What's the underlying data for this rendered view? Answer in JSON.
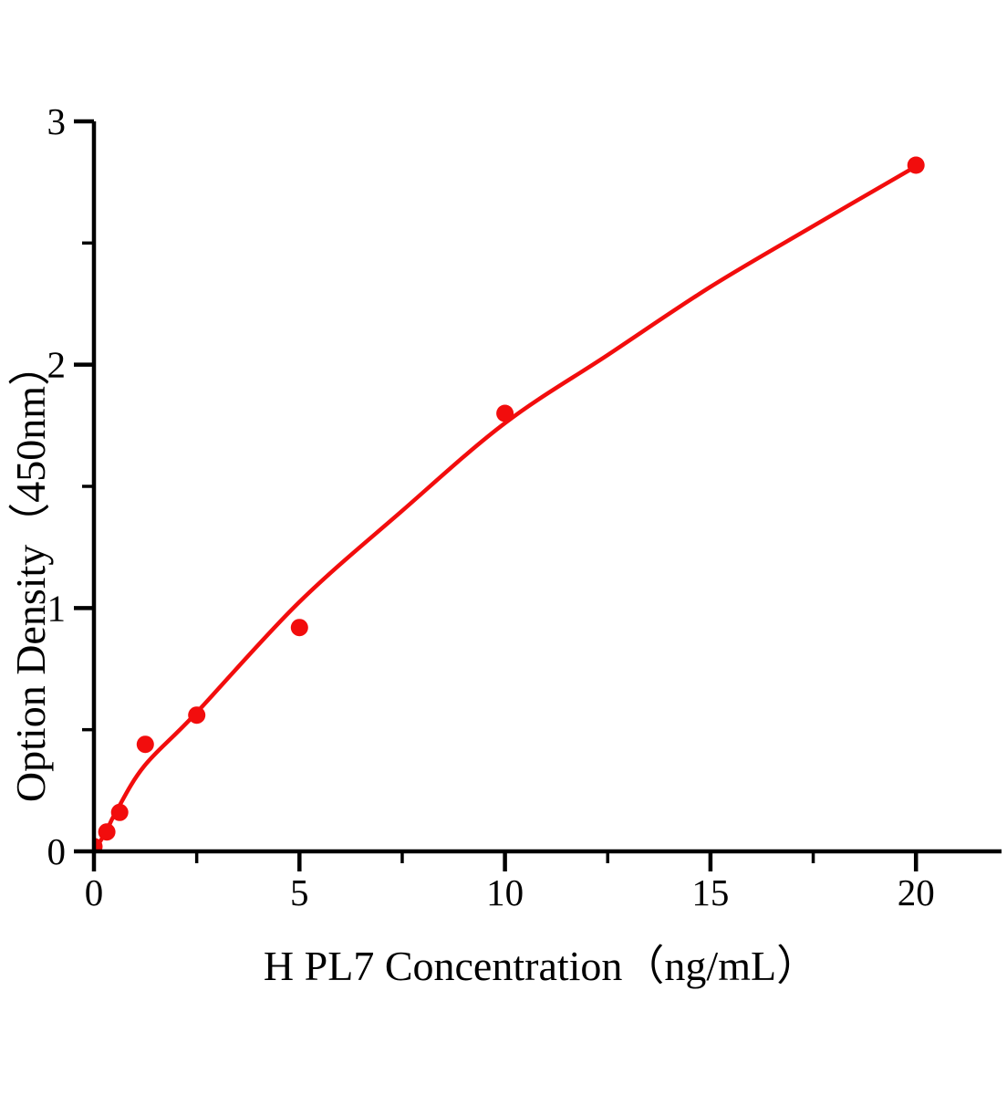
{
  "figure": {
    "background_color": "#ffffff",
    "axis_color": "#000000",
    "accent_color": "#f20d0d"
  },
  "chart_data": {
    "type": "scatter",
    "subtype": "standard-curve-with-fit-line",
    "title": "",
    "xlabel": "H PL7 Concentration（ng/mL）",
    "ylabel": "Option Density（450nm）",
    "xlim": [
      0,
      22.1
    ],
    "ylim": [
      0,
      3
    ],
    "grid": false,
    "legend": null,
    "x_major_ticks": [
      0,
      5,
      10,
      15,
      20
    ],
    "x_minor_ticks": [
      2.5,
      7.5,
      12.5,
      17.5
    ],
    "x_tick_labels": [
      "0",
      "5",
      "10",
      "15",
      "20"
    ],
    "y_major_ticks": [
      0,
      1,
      2,
      3
    ],
    "y_minor_ticks": [
      0.5,
      1.5,
      2.5
    ],
    "y_tick_labels": [
      "0",
      "1",
      "2",
      "3"
    ],
    "series": [
      {
        "name": "standard-points",
        "type": "scatter",
        "color": "#f20d0d",
        "marker": "circle",
        "points": [
          [
            0,
            0.02
          ],
          [
            0.313,
            0.08
          ],
          [
            0.625,
            0.16
          ],
          [
            1.25,
            0.44
          ],
          [
            2.5,
            0.56
          ],
          [
            5,
            0.92
          ],
          [
            10,
            1.8
          ],
          [
            20,
            2.82
          ]
        ]
      },
      {
        "name": "fit-curve",
        "type": "line",
        "color": "#f20d0d",
        "points": [
          [
            0,
            0.0
          ],
          [
            0.29,
            0.08
          ],
          [
            0.53,
            0.16
          ],
          [
            1.22,
            0.35
          ],
          [
            2.44,
            0.56
          ],
          [
            4.97,
            1.02
          ],
          [
            7.5,
            1.4
          ],
          [
            10,
            1.76
          ],
          [
            12.5,
            2.04
          ],
          [
            15,
            2.32
          ],
          [
            17.5,
            2.57
          ],
          [
            20,
            2.815
          ]
        ]
      }
    ]
  }
}
